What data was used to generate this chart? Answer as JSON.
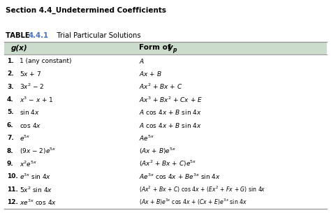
{
  "title": "Section 4.4_Undetermined Coefficients",
  "table_label": "TABLE ",
  "table_number": "4.4.1",
  "table_number_color": "#4472c4",
  "table_title": "    Trial Particular Solutions",
  "col1_header": "g(x)",
  "col2_header": "Form of y",
  "col2_sub": "p",
  "header_bg": "#ccdccc",
  "bg_color": "#ffffff",
  "col_split": 0.4,
  "gx_entries": [
    "1 (any constant)",
    "5$x$ + 7",
    "3$x$$^{2}$ − 2",
    "$x$$^{3}$ − $x$ + 1",
    "sin 4$x$",
    "cos 4$x$",
    "$e$$^{5x}$",
    "(9$x$ − 2)$e$$^{5x}$",
    "$x$$^{2}$$e$$^{5x}$",
    "$e$$^{3x}$ sin 4$x$",
    "5$x$$^{2}$ sin 4$x$",
    "$x$$e$$^{3x}$ cos 4$x$"
  ],
  "yp_entries": [
    "$A$",
    "$Ax$ + $B$",
    "$Ax$$^{2}$ + $Bx$ + $C$",
    "$Ax$$^{3}$ + $Bx$$^{2}$ + $Cx$ + $E$",
    "$A$ cos 4$x$ + $B$ sin 4$x$",
    "$A$ cos 4$x$ + $B$ sin 4$x$",
    "$Ae$$^{5x}$",
    "($Ax$ + $B$)$e$$^{5x}$",
    "($Ax$$^{2}$ + $Bx$ + $C$)$e$$^{5x}$",
    "$Ae$$^{3x}$ cos 4$x$ + $Be$$^{3x}$ sin 4$x$",
    "($Ax$$^{2}$ + $Bx$ + $C$) cos 4$x$ + ($Ex$$^{2}$ + $Fx$ + $G$) sin 4$x$",
    "($Ax$ + $B$)$e$$^{3x}$ cos 4$x$ + ($Cx$ + $E$)$e$$^{3x}$ sin 4$x$"
  ],
  "numbers": [
    "1.",
    "2.",
    "3.",
    "4.",
    "5.",
    "6.",
    "7.",
    "8.",
    "9.",
    "10.",
    "11.",
    "12."
  ]
}
